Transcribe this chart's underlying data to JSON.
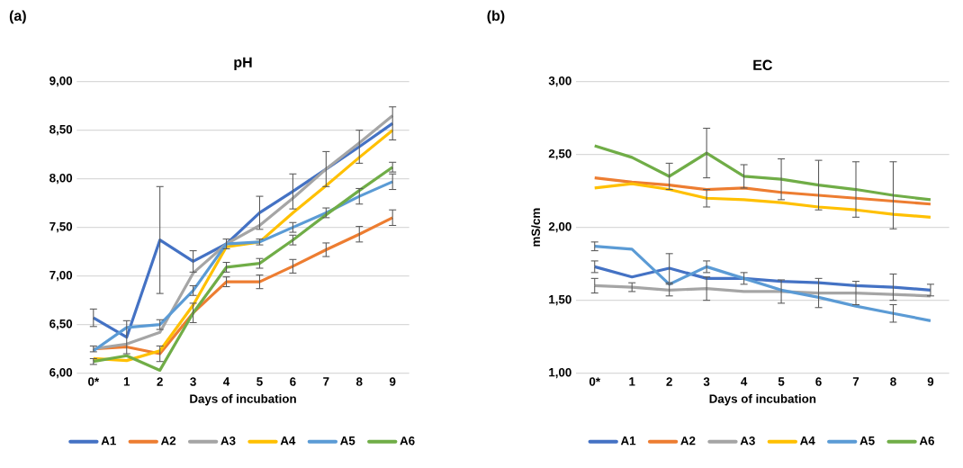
{
  "chart_data": [
    {
      "type": "line",
      "title": "pH",
      "xlabel": "Days of incubation",
      "annotations": [
        "(a)"
      ],
      "categories": [
        "0*",
        "1",
        "2",
        "3",
        "4",
        "5",
        "6",
        "7",
        "8",
        "9"
      ],
      "ylim": [
        6,
        9
      ],
      "yticks": [
        {
          "value": 6,
          "label": "6,00"
        },
        {
          "value": 6.5,
          "label": "6,50"
        },
        {
          "value": 7,
          "label": "7,00"
        },
        {
          "value": 7.5,
          "label": "7,50"
        },
        {
          "value": 8,
          "label": "8,00"
        },
        {
          "value": 8.5,
          "label": "8,50"
        },
        {
          "value": 9,
          "label": "9,00"
        }
      ],
      "grid": "y",
      "legend": "bottom",
      "marker": "none",
      "series": [
        {
          "name": "A1",
          "color": "#4472c4",
          "values": [
            6.57,
            6.37,
            7.37,
            7.15,
            7.33,
            7.65,
            7.87,
            8.1,
            8.33,
            8.57
          ],
          "errors": [
            0.09,
            0.17,
            0.55,
            0.11,
            0.05,
            0.17,
            0.18,
            0.18,
            0.17,
            0.17
          ]
        },
        {
          "name": "A2",
          "color": "#ed7d31",
          "values": [
            6.25,
            6.27,
            6.2,
            6.62,
            6.94,
            6.94,
            7.1,
            7.27,
            7.43,
            7.6
          ],
          "errors": [
            0.03,
            null,
            0.08,
            0.1,
            0.05,
            0.07,
            0.07,
            0.07,
            0.08,
            0.08
          ]
        },
        {
          "name": "A3",
          "color": "#a5a5a5",
          "values": [
            6.25,
            6.3,
            6.42,
            7.03,
            7.33,
            7.52,
            7.8,
            8.1,
            8.37,
            8.65
          ]
        },
        {
          "name": "A4",
          "color": "#ffc000",
          "values": [
            6.15,
            6.13,
            6.23,
            6.7,
            7.3,
            7.35,
            7.65,
            7.93,
            8.22,
            8.5
          ]
        },
        {
          "name": "A5",
          "color": "#5b9bd5",
          "values": [
            6.23,
            6.47,
            6.5,
            6.85,
            7.33,
            7.35,
            7.5,
            7.65,
            7.82,
            7.97
          ],
          "errors": [
            null,
            null,
            0.05,
            0.05,
            null,
            0.03,
            0.05,
            0.05,
            0.08,
            0.08
          ]
        },
        {
          "name": "A6",
          "color": "#70ad47",
          "values": [
            6.12,
            6.18,
            6.03,
            6.62,
            7.09,
            7.13,
            7.37,
            7.63,
            7.88,
            8.12
          ],
          "errors": [
            0.03,
            null,
            null,
            null,
            0.05,
            0.05,
            0.05,
            null,
            null,
            0.05
          ]
        }
      ]
    },
    {
      "type": "line",
      "title": "EC",
      "xlabel": "Days of incubation",
      "ylabel": "mS/cm",
      "annotations": [
        "(b)"
      ],
      "categories": [
        "0*",
        "1",
        "2",
        "3",
        "4",
        "5",
        "6",
        "7",
        "8",
        "9"
      ],
      "ylim": [
        1,
        3
      ],
      "yticks": [
        {
          "value": 1,
          "label": "1,00"
        },
        {
          "value": 1.5,
          "label": "1,50"
        },
        {
          "value": 2,
          "label": "2,00"
        },
        {
          "value": 2.5,
          "label": "2,50"
        },
        {
          "value": 3,
          "label": "3,00"
        }
      ],
      "grid": "y",
      "legend": "bottom",
      "marker": "none",
      "series": [
        {
          "name": "A1",
          "color": "#4472c4",
          "values": [
            1.73,
            1.66,
            1.72,
            1.65,
            1.65,
            1.63,
            1.62,
            1.6,
            1.59,
            1.57
          ],
          "errors": [
            0.04,
            null,
            0.1,
            null,
            0.04,
            null,
            null,
            null,
            0.09,
            0.04
          ]
        },
        {
          "name": "A2",
          "color": "#ed7d31",
          "values": [
            2.34,
            2.31,
            2.29,
            2.26,
            2.27,
            2.24,
            2.22,
            2.2,
            2.18,
            2.16
          ]
        },
        {
          "name": "A3",
          "color": "#a5a5a5",
          "values": [
            1.6,
            1.59,
            1.57,
            1.58,
            1.56,
            1.56,
            1.55,
            1.55,
            1.54,
            1.53
          ],
          "errors": [
            0.05,
            0.03,
            0.04,
            0.08,
            null,
            0.08,
            0.1,
            0.08,
            null,
            null
          ]
        },
        {
          "name": "A4",
          "color": "#ffc000",
          "values": [
            2.27,
            2.3,
            2.26,
            2.2,
            2.19,
            2.17,
            2.14,
            2.12,
            2.09,
            2.07
          ],
          "errors": [
            null,
            null,
            null,
            0.06,
            null,
            null,
            null,
            null,
            null,
            null
          ]
        },
        {
          "name": "A5",
          "color": "#5b9bd5",
          "values": [
            1.87,
            1.85,
            1.61,
            1.73,
            1.65,
            1.57,
            1.52,
            1.46,
            1.41,
            1.36
          ],
          "errors": [
            0.03,
            null,
            null,
            0.04,
            null,
            null,
            null,
            null,
            0.06,
            null
          ]
        },
        {
          "name": "A6",
          "color": "#70ad47",
          "values": [
            2.56,
            2.48,
            2.35,
            2.51,
            2.35,
            2.33,
            2.29,
            2.26,
            2.22,
            2.19
          ],
          "errors": [
            null,
            null,
            0.09,
            0.17,
            0.08,
            0.14,
            0.17,
            0.19,
            0.23,
            null
          ]
        }
      ]
    }
  ]
}
